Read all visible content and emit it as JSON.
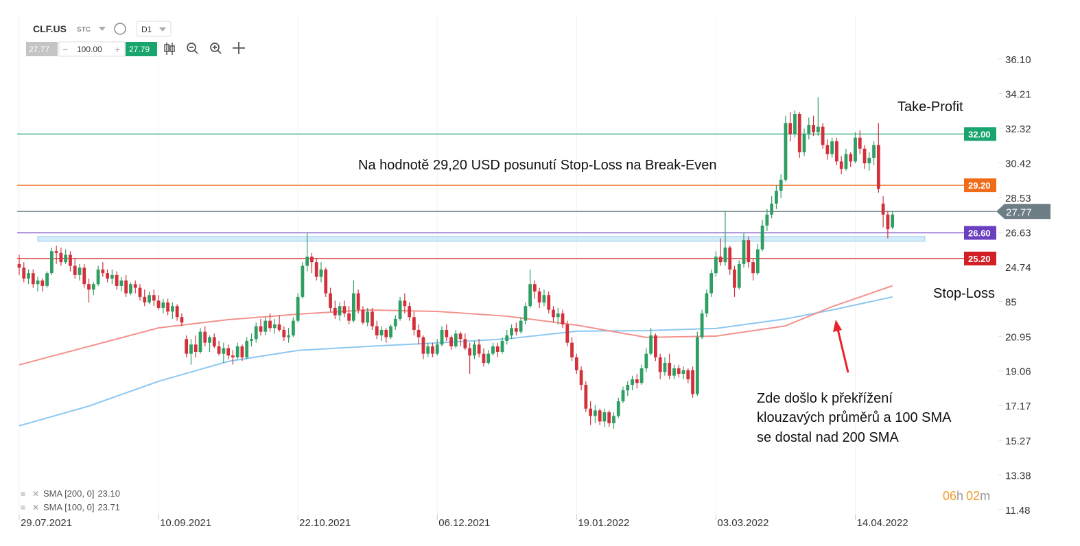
{
  "toolbar": {
    "symbol": "CLF.US",
    "market": "STC",
    "interval": "D1",
    "bid": "27.77",
    "volume": "100.00",
    "ask": "27.79"
  },
  "timer": {
    "hours": "06",
    "h": "h",
    "minutes": "02",
    "m": "m"
  },
  "chart_data": {
    "type": "candlestick",
    "xlim": [
      -0.44,
      210.8
    ],
    "ylim": [
      11.22,
      38.57
    ],
    "xticks": [
      {
        "value": 0,
        "label": "29.07.2021"
      },
      {
        "value": 30,
        "label": "10.09.2021"
      },
      {
        "value": 60,
        "label": "22.10.2021"
      },
      {
        "value": 90,
        "label": "06.12.2021"
      },
      {
        "value": 120,
        "label": "19.01.2022"
      },
      {
        "value": 150,
        "label": "03.03.2022"
      },
      {
        "value": 180,
        "label": "14.04.2022"
      }
    ],
    "yticks": [
      {
        "value": 36.1,
        "label": "36.10"
      },
      34.21,
      32.32,
      30.42,
      28.53,
      26.63,
      24.74,
      {
        "value": 22.85,
        "label": "85"
      },
      20.95,
      19.06,
      17.17,
      15.27,
      13.38,
      11.48
    ],
    "grid": true,
    "up_color": "#2f9e62",
    "down_color": "#d2313c",
    "candles": [
      [
        24.9,
        25.4,
        24.3,
        24.7
      ],
      [
        24.7,
        25.0,
        23.9,
        24.1
      ],
      [
        24.1,
        24.6,
        23.8,
        24.4
      ],
      [
        24.4,
        24.6,
        23.6,
        23.8
      ],
      [
        23.8,
        24.2,
        23.4,
        24.0
      ],
      [
        24.0,
        24.1,
        23.4,
        23.7
      ],
      [
        23.7,
        24.5,
        23.6,
        24.4
      ],
      [
        24.4,
        25.8,
        24.3,
        25.6
      ],
      [
        25.6,
        25.9,
        24.9,
        25.5
      ],
      [
        25.5,
        25.8,
        24.8,
        25.0
      ],
      [
        25.0,
        25.7,
        24.9,
        25.4
      ],
      [
        25.4,
        25.6,
        24.5,
        24.8
      ],
      [
        24.8,
        25.2,
        24.1,
        24.3
      ],
      [
        24.3,
        24.9,
        24.0,
        24.7
      ],
      [
        24.7,
        24.9,
        23.6,
        23.8
      ],
      [
        23.8,
        24.1,
        22.8,
        23.5
      ],
      [
        23.5,
        23.9,
        23.2,
        23.8
      ],
      [
        23.8,
        24.8,
        23.7,
        24.6
      ],
      [
        24.6,
        25.0,
        24.2,
        24.4
      ],
      [
        24.4,
        24.6,
        23.9,
        24.1
      ],
      [
        24.1,
        24.6,
        23.8,
        24.3
      ],
      [
        24.3,
        24.5,
        23.5,
        23.7
      ],
      [
        23.7,
        24.2,
        23.4,
        24.0
      ],
      [
        24.0,
        24.3,
        23.1,
        23.3
      ],
      [
        23.3,
        23.9,
        23.2,
        23.8
      ],
      [
        23.8,
        24.0,
        23.3,
        23.6
      ],
      [
        23.6,
        23.8,
        22.9,
        23.1
      ],
      [
        23.1,
        23.5,
        22.6,
        22.8
      ],
      [
        22.8,
        23.4,
        22.7,
        23.2
      ],
      [
        23.2,
        23.5,
        22.6,
        22.9
      ],
      [
        22.9,
        23.2,
        22.4,
        22.5
      ],
      [
        22.5,
        23.0,
        22.2,
        22.8
      ],
      [
        22.8,
        23.0,
        22.1,
        22.3
      ],
      [
        22.3,
        22.8,
        21.9,
        22.6
      ],
      [
        22.6,
        22.7,
        21.8,
        22.0
      ],
      [
        22.0,
        22.2,
        21.5,
        21.7
      ],
      [
        20.8,
        21.0,
        19.8,
        20.0
      ],
      [
        20.0,
        20.8,
        19.4,
        20.5
      ],
      [
        20.5,
        21.0,
        19.8,
        20.1
      ],
      [
        20.1,
        21.4,
        20.0,
        21.2
      ],
      [
        21.2,
        21.5,
        20.4,
        20.6
      ],
      [
        20.6,
        21.0,
        20.1,
        20.9
      ],
      [
        20.9,
        21.1,
        20.3,
        20.4
      ],
      [
        20.4,
        20.7,
        19.9,
        20.0
      ],
      [
        20.0,
        20.6,
        19.5,
        20.3
      ],
      [
        20.3,
        20.5,
        19.7,
        19.9
      ],
      [
        19.9,
        20.2,
        19.4,
        19.8
      ],
      [
        19.8,
        20.6,
        19.7,
        20.4
      ],
      [
        20.4,
        20.5,
        19.6,
        19.8
      ],
      [
        19.8,
        20.9,
        19.7,
        20.7
      ],
      [
        20.7,
        21.1,
        20.4,
        20.8
      ],
      [
        20.8,
        21.7,
        20.6,
        21.5
      ],
      [
        21.5,
        21.9,
        21.0,
        21.2
      ],
      [
        21.2,
        22.0,
        21.0,
        21.8
      ],
      [
        21.8,
        22.2,
        21.2,
        21.4
      ],
      [
        21.4,
        21.9,
        21.1,
        21.6
      ],
      [
        21.6,
        22.1,
        21.2,
        21.3
      ],
      [
        21.3,
        21.5,
        20.7,
        20.9
      ],
      [
        20.9,
        21.4,
        20.6,
        21.0
      ],
      [
        21.0,
        22.0,
        20.9,
        21.8
      ],
      [
        21.8,
        23.3,
        21.7,
        23.1
      ],
      [
        23.1,
        25.0,
        23.0,
        24.8
      ],
      [
        24.8,
        26.6,
        24.5,
        25.3
      ],
      [
        25.3,
        25.5,
        24.4,
        25.0
      ],
      [
        25.0,
        25.2,
        24.0,
        24.2
      ],
      [
        24.2,
        25.0,
        23.9,
        24.6
      ],
      [
        24.6,
        24.7,
        23.1,
        23.3
      ],
      [
        23.3,
        23.6,
        22.3,
        22.5
      ],
      [
        22.5,
        22.9,
        21.9,
        22.1
      ],
      [
        22.1,
        22.8,
        21.8,
        22.6
      ],
      [
        22.6,
        22.9,
        22.0,
        22.2
      ],
      [
        22.2,
        22.6,
        21.6,
        21.8
      ],
      [
        21.8,
        24.0,
        21.7,
        23.3
      ],
      [
        23.3,
        23.5,
        22.2,
        22.4
      ],
      [
        22.4,
        22.6,
        21.6,
        21.7
      ],
      [
        21.7,
        22.5,
        21.5,
        22.3
      ],
      [
        22.3,
        22.5,
        21.3,
        21.5
      ],
      [
        21.5,
        21.8,
        20.8,
        21.0
      ],
      [
        21.0,
        21.5,
        20.7,
        21.3
      ],
      [
        21.3,
        21.4,
        20.6,
        20.9
      ],
      [
        20.9,
        21.6,
        20.8,
        21.5
      ],
      [
        21.5,
        22.1,
        21.3,
        21.9
      ],
      [
        21.9,
        23.1,
        21.8,
        22.9
      ],
      [
        22.9,
        23.3,
        22.2,
        22.6
      ],
      [
        22.6,
        22.8,
        21.8,
        22.0
      ],
      [
        22.0,
        22.3,
        21.0,
        21.3
      ],
      [
        21.3,
        21.6,
        20.5,
        20.9
      ],
      [
        20.9,
        21.0,
        19.7,
        20.0
      ],
      [
        20.0,
        20.6,
        19.8,
        20.4
      ],
      [
        20.4,
        20.6,
        19.8,
        20.0
      ],
      [
        20.0,
        20.8,
        19.9,
        20.5
      ],
      [
        20.5,
        21.5,
        20.4,
        21.3
      ],
      [
        21.3,
        21.6,
        20.7,
        20.9
      ],
      [
        20.9,
        21.0,
        20.2,
        20.4
      ],
      [
        20.4,
        21.3,
        20.3,
        21.1
      ],
      [
        21.1,
        21.2,
        20.4,
        20.8
      ],
      [
        20.8,
        21.1,
        20.2,
        20.3
      ],
      [
        20.3,
        20.6,
        18.9,
        19.9
      ],
      [
        19.9,
        20.7,
        19.7,
        20.5
      ],
      [
        20.5,
        20.8,
        19.8,
        20.0
      ],
      [
        20.0,
        20.3,
        19.3,
        19.5
      ],
      [
        19.5,
        20.2,
        19.4,
        20.0
      ],
      [
        20.0,
        20.6,
        19.9,
        20.4
      ],
      [
        20.4,
        20.6,
        19.8,
        20.1
      ],
      [
        20.1,
        20.9,
        20.0,
        20.7
      ],
      [
        20.7,
        21.3,
        20.5,
        21.0
      ],
      [
        21.0,
        21.6,
        20.8,
        21.4
      ],
      [
        21.4,
        21.7,
        21.0,
        21.2
      ],
      [
        21.2,
        22.0,
        21.1,
        21.8
      ],
      [
        21.8,
        22.8,
        21.6,
        22.6
      ],
      [
        22.6,
        24.6,
        22.5,
        23.8
      ],
      [
        23.8,
        24.0,
        23.0,
        23.4
      ],
      [
        23.4,
        23.6,
        22.5,
        22.8
      ],
      [
        22.8,
        23.5,
        22.6,
        23.2
      ],
      [
        23.2,
        23.4,
        22.2,
        22.4
      ],
      [
        22.4,
        22.6,
        21.7,
        22.0
      ],
      [
        22.0,
        22.5,
        21.6,
        22.2
      ],
      [
        22.2,
        22.4,
        21.4,
        21.6
      ],
      [
        21.6,
        21.8,
        20.4,
        20.6
      ],
      [
        20.6,
        20.9,
        19.6,
        19.8
      ],
      [
        19.8,
        20.0,
        18.9,
        19.1
      ],
      [
        19.1,
        19.3,
        18.0,
        18.3
      ],
      [
        18.3,
        18.5,
        16.8,
        17.0
      ],
      [
        17.0,
        17.4,
        16.1,
        16.6
      ],
      [
        16.6,
        17.2,
        16.2,
        16.9
      ],
      [
        16.9,
        17.0,
        16.1,
        16.3
      ],
      [
        16.3,
        17.0,
        16.0,
        16.8
      ],
      [
        16.8,
        16.9,
        16.0,
        16.2
      ],
      [
        16.2,
        16.8,
        15.9,
        16.6
      ],
      [
        16.6,
        17.6,
        16.5,
        17.4
      ],
      [
        17.4,
        18.2,
        17.3,
        18.0
      ],
      [
        18.0,
        18.5,
        17.7,
        18.3
      ],
      [
        18.3,
        18.8,
        18.0,
        18.6
      ],
      [
        18.6,
        18.9,
        18.1,
        18.4
      ],
      [
        18.4,
        19.4,
        18.3,
        19.2
      ],
      [
        19.2,
        20.3,
        19.0,
        20.0
      ],
      [
        20.0,
        21.4,
        19.9,
        21.0
      ],
      [
        21.0,
        21.1,
        19.6,
        19.8
      ],
      [
        19.8,
        20.0,
        18.6,
        19.0
      ],
      [
        19.0,
        19.8,
        18.8,
        19.5
      ],
      [
        19.5,
        20.0,
        18.6,
        18.8
      ],
      [
        18.8,
        19.4,
        18.6,
        19.2
      ],
      [
        19.2,
        19.4,
        18.7,
        18.9
      ],
      [
        18.9,
        19.3,
        18.6,
        19.1
      ],
      [
        19.1,
        19.2,
        18.4,
        18.6
      ],
      [
        19.1,
        19.3,
        17.6,
        17.8
      ],
      [
        17.8,
        21.2,
        17.7,
        20.9
      ],
      [
        20.9,
        22.4,
        20.8,
        22.2
      ],
      [
        22.2,
        23.5,
        22.0,
        23.3
      ],
      [
        23.3,
        24.6,
        23.1,
        24.4
      ],
      [
        24.4,
        25.6,
        24.2,
        25.3
      ],
      [
        25.3,
        26.3,
        24.8,
        25.0
      ],
      [
        25.0,
        27.8,
        24.8,
        25.8
      ],
      [
        25.8,
        25.9,
        24.3,
        24.6
      ],
      [
        24.6,
        24.8,
        23.1,
        23.6
      ],
      [
        23.6,
        25.1,
        23.5,
        24.9
      ],
      [
        24.9,
        26.6,
        24.7,
        26.2
      ],
      [
        26.2,
        26.4,
        24.7,
        25.0
      ],
      [
        25.0,
        25.2,
        24.0,
        24.4
      ],
      [
        24.4,
        26.0,
        24.3,
        25.7
      ],
      [
        25.7,
        27.3,
        25.6,
        27.0
      ],
      [
        27.0,
        27.9,
        26.7,
        27.6
      ],
      [
        27.6,
        28.6,
        27.4,
        28.2
      ],
      [
        28.2,
        29.2,
        27.9,
        28.9
      ],
      [
        28.9,
        29.8,
        28.5,
        29.5
      ],
      [
        29.5,
        33.0,
        29.4,
        32.6
      ],
      [
        32.6,
        33.2,
        31.6,
        32.0
      ],
      [
        32.0,
        33.3,
        31.8,
        33.1
      ],
      [
        33.1,
        33.2,
        30.7,
        31.0
      ],
      [
        31.0,
        32.3,
        30.8,
        32.0
      ],
      [
        32.0,
        32.9,
        31.7,
        32.5
      ],
      [
        32.5,
        33.0,
        31.9,
        32.1
      ],
      [
        32.1,
        34.0,
        31.9,
        32.4
      ],
      [
        32.4,
        32.6,
        31.2,
        31.4
      ],
      [
        31.4,
        31.7,
        30.6,
        30.9
      ],
      [
        30.9,
        31.8,
        30.7,
        31.6
      ],
      [
        31.6,
        31.8,
        30.3,
        30.5
      ],
      [
        30.5,
        30.8,
        29.8,
        30.1
      ],
      [
        30.1,
        31.2,
        30.0,
        30.9
      ],
      [
        30.9,
        31.0,
        30.2,
        30.5
      ],
      [
        30.5,
        32.1,
        30.4,
        31.8
      ],
      [
        31.8,
        32.2,
        30.9,
        31.2
      ],
      [
        31.2,
        31.4,
        30.1,
        30.4
      ],
      [
        30.4,
        31.0,
        30.0,
        30.7
      ],
      [
        30.7,
        31.6,
        30.3,
        31.4
      ],
      [
        31.4,
        32.6,
        28.8,
        29.0
      ],
      [
        28.2,
        28.6,
        26.9,
        27.6
      ],
      [
        27.6,
        27.8,
        26.3,
        26.8
      ],
      [
        26.9,
        27.8,
        26.8,
        27.6
      ]
    ],
    "series": [
      {
        "name": "SMA [200, 0]",
        "color": "#8cc8f2",
        "x": [
          0,
          15,
          30,
          45,
          60,
          75,
          90,
          105,
          120,
          135,
          150,
          165,
          175,
          188
        ],
        "values": [
          16.06,
          17.14,
          18.49,
          19.58,
          20.18,
          20.4,
          20.59,
          20.81,
          21.23,
          21.26,
          21.38,
          21.9,
          22.39,
          23.1
        ],
        "value_labels": [
          null,
          null,
          null,
          null,
          null,
          null,
          null,
          null,
          null,
          null,
          null,
          null,
          null,
          "23.10"
        ]
      },
      {
        "name": "SMA [100, 0]",
        "color": "#f2928b",
        "x": [
          0,
          15,
          30,
          45,
          60,
          75,
          90,
          105,
          120,
          135,
          150,
          165,
          175,
          188
        ],
        "values": [
          19.39,
          20.4,
          21.41,
          21.86,
          22.16,
          22.39,
          22.31,
          22.05,
          21.56,
          20.89,
          20.96,
          21.52,
          22.57,
          23.71
        ],
        "value_labels": [
          null,
          null,
          null,
          null,
          null,
          null,
          null,
          null,
          null,
          null,
          null,
          null,
          null,
          "23.71"
        ]
      }
    ],
    "zone": [
      26.14,
      26.4
    ],
    "levels": [
      {
        "value": 32.0,
        "label": "32.00",
        "color": "#1aa56e"
      },
      {
        "value": 29.2,
        "label": "29.20",
        "color": "#ef6c1a"
      },
      {
        "value": 27.77,
        "label": "27.77",
        "color": "#6d7d84"
      },
      {
        "value": 26.6,
        "label": "26.60",
        "color": "#6a3fc0"
      },
      {
        "value": 25.2,
        "label": "25.20",
        "color": "#d11f25"
      }
    ],
    "annotations": [
      "Take-Profit",
      "Na hodnotě 29,20 USD posunutí Stop-Loss na Break-Even",
      "Stop-Loss",
      "Zde došlo k překřížení",
      "klouzavých průměrů a 100 SMA",
      "se dostal nad 200 SMA"
    ]
  }
}
